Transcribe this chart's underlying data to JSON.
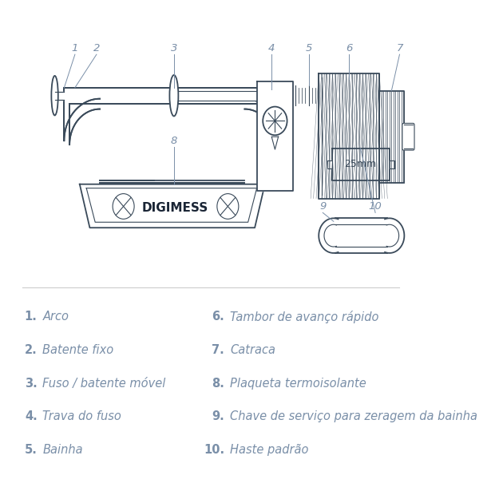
{
  "bg_color": "#ffffff",
  "label_color": "#7a8fa8",
  "text_color": "#7a8fa8",
  "digimess_color": "#1a2535",
  "line_color": "#3a4a5a",
  "parts_left": [
    {
      "num": "1.",
      "text": "Arco"
    },
    {
      "num": "2.",
      "text": "Batente fixo"
    },
    {
      "num": "3.",
      "text": "Fuso / batente móvel"
    },
    {
      "num": "4.",
      "text": "Trava do fuso"
    },
    {
      "num": "5.",
      "text": "Bainha"
    }
  ],
  "parts_right": [
    {
      "num": "6.",
      "text": "Tambor de avanço rápido"
    },
    {
      "num": "7.",
      "text": "Catraca"
    },
    {
      "num": "8.",
      "text": "Plaqueta termoisolante"
    },
    {
      "num": "9.",
      "text": "Chave de serviço para zeragem da bainha"
    },
    {
      "num": "10.",
      "text": "Haste padrão"
    }
  ]
}
